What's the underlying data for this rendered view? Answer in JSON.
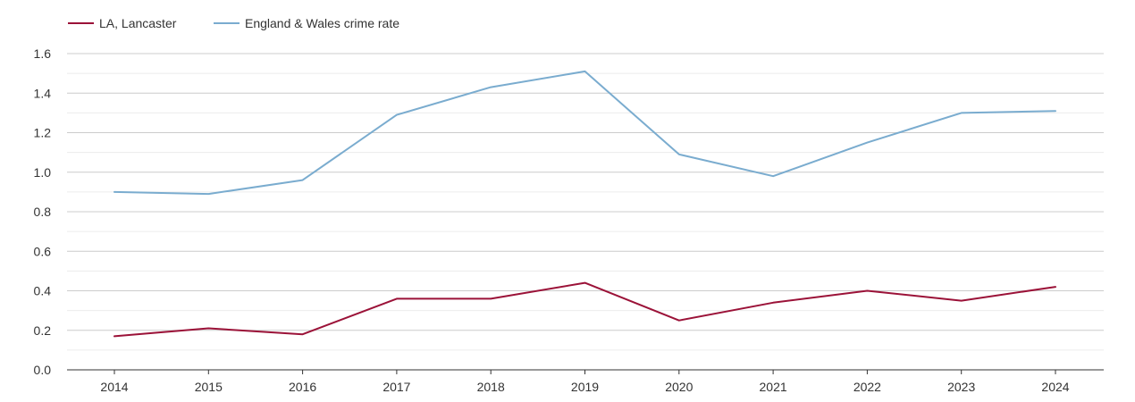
{
  "chart_data": {
    "type": "line",
    "title": "",
    "xlabel": "",
    "ylabel": "",
    "categories": [
      "2014",
      "2015",
      "2016",
      "2017",
      "2018",
      "2019",
      "2020",
      "2021",
      "2022",
      "2023",
      "2024"
    ],
    "ylim": [
      0,
      1.6
    ],
    "yticks": [
      "0.0",
      "0.2",
      "0.4",
      "0.6",
      "0.8",
      "1.0",
      "1.2",
      "1.4",
      "1.6"
    ],
    "grid": true,
    "legend_position": "top-left",
    "series": [
      {
        "name": "LA, Lancaster",
        "color": "#9b1238",
        "values": [
          0.17,
          0.21,
          0.18,
          0.36,
          0.36,
          0.44,
          0.25,
          0.34,
          0.4,
          0.35,
          0.42
        ]
      },
      {
        "name": "England & Wales crime rate",
        "color": "#7aaccf",
        "values": [
          0.9,
          0.89,
          0.96,
          1.29,
          1.43,
          1.51,
          1.09,
          0.98,
          1.15,
          1.3,
          1.31
        ]
      }
    ]
  }
}
